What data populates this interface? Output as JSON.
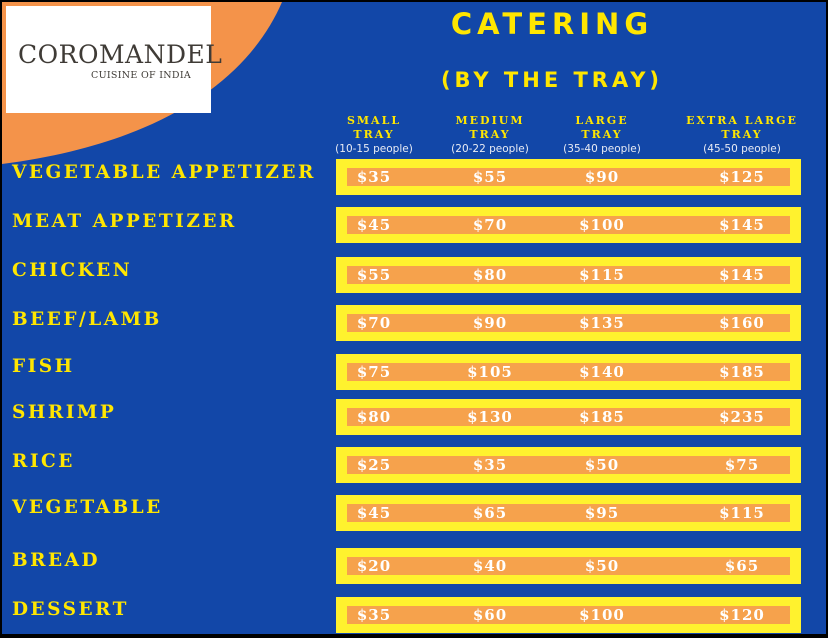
{
  "logo": {
    "name": "COROMANDEL",
    "tagline": "CUISINE OF INDIA"
  },
  "title": "CATERING",
  "subtitle": "(BY THE TRAY)",
  "columns": [
    {
      "line1": "SMALL",
      "line2": "TRAY",
      "people": "(10-15 people)"
    },
    {
      "line1": "MEDIUM",
      "line2": "TRAY",
      "people": "(20-22 people)"
    },
    {
      "line1": "LARGE",
      "line2": "TRAY",
      "people": "(35-40 people)"
    },
    {
      "line1": "EXTRA LARGE",
      "line2": "TRAY",
      "people": "(45-50 people)"
    }
  ],
  "rows": [
    {
      "label": "VEGETABLE APPETIZER",
      "prices": [
        "$35",
        "$55",
        "$90",
        "$125"
      ]
    },
    {
      "label": "MEAT APPETIZER",
      "prices": [
        "$45",
        "$70",
        "$100",
        "$145"
      ]
    },
    {
      "label": "CHICKEN",
      "prices": [
        "$55",
        "$80",
        "$115",
        "$145"
      ]
    },
    {
      "label": "BEEF/LAMB",
      "prices": [
        "$70",
        "$90",
        "$135",
        "$160"
      ]
    },
    {
      "label": "FISH",
      "prices": [
        "$75",
        "$105",
        "$140",
        "$185"
      ]
    },
    {
      "label": "SHRIMP",
      "prices": [
        "$80",
        "$130",
        "$185",
        "$235"
      ]
    },
    {
      "label": "RICE",
      "prices": [
        "$25",
        "$35",
        "$50",
        "$75"
      ]
    },
    {
      "label": "VEGETABLE",
      "prices": [
        "$45",
        "$65",
        "$95",
        "$115"
      ]
    },
    {
      "label": "BREAD",
      "prices": [
        "$20",
        "$40",
        "$50",
        "$65"
      ]
    },
    {
      "label": "DESSERT",
      "prices": [
        "$35",
        "$60",
        "$100",
        "$120"
      ]
    }
  ],
  "colors": {
    "background": "#1247a8",
    "accent_yellow": "#ffe600",
    "bar_yellow": "#fff22e",
    "bar_orange": "#f6a24c",
    "swoosh_orange": "#f4934a"
  }
}
